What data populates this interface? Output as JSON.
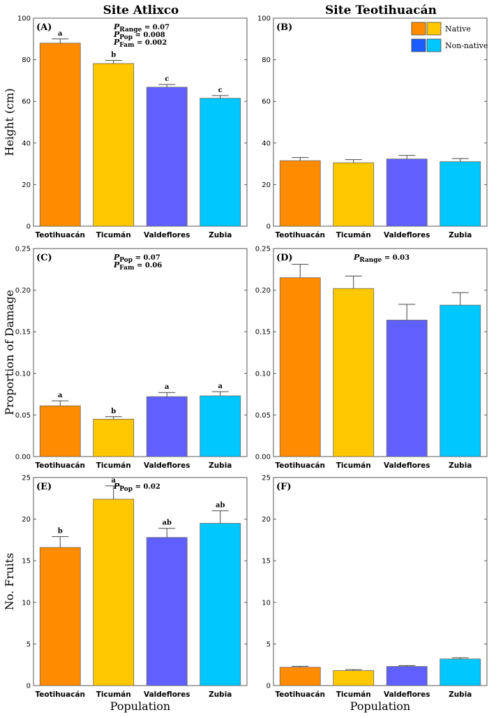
{
  "figure": {
    "col_titles": [
      "Site Atlixco",
      "Site Teotihuacán"
    ],
    "xlabel": "Population",
    "legend": [
      {
        "label": "Native",
        "colors": [
          "#ff8c00",
          "#ffc800"
        ]
      },
      {
        "label": "Non-native",
        "colors": [
          "#1a5cff",
          "#00c8ff"
        ]
      }
    ]
  },
  "colors": {
    "Teotihuacán": "#ff8c00",
    "Ticumán": "#ffc800",
    "Valdeflores": "#6060ff",
    "Zubia": "#00c8ff"
  },
  "chart_data": [
    {
      "panel": "(A)",
      "site": "Site Atlixco",
      "type": "bar",
      "categories": [
        "Teotihuacán",
        "Ticumán",
        "Valdeflores",
        "Zubia"
      ],
      "values": [
        88,
        78.2,
        66.8,
        61.5
      ],
      "errors": [
        2,
        1.5,
        1.3,
        1.3
      ],
      "letters": [
        "a",
        "b",
        "c",
        "c"
      ],
      "ylabel": "Height (cm)",
      "ylim": [
        0,
        100
      ],
      "yticks": [
        0,
        20,
        40,
        60,
        80,
        100
      ],
      "ytick_labels": [
        "0",
        "20",
        "40",
        "60",
        "80",
        "100"
      ],
      "pvalues": [
        {
          "sym": "P",
          "sub": "Range",
          "val": " =  0.07"
        },
        {
          "sym": "P",
          "sub": "Pop",
          "val": " = 0.008"
        },
        {
          "sym": "P",
          "sub": "Fam",
          "val": " = 0.002"
        }
      ]
    },
    {
      "panel": "(B)",
      "site": "Site Teotihuacán",
      "type": "bar",
      "categories": [
        "Teotihuacán",
        "Ticumán",
        "Valdeflores",
        "Zubia"
      ],
      "values": [
        31.5,
        30.5,
        32.3,
        31
      ],
      "errors": [
        1.5,
        1.5,
        1.7,
        1.5
      ],
      "letters": [],
      "ylabel": "",
      "ylim": [
        0,
        100
      ],
      "yticks": [
        0,
        20,
        40,
        60,
        80,
        100
      ],
      "ytick_labels": [
        "0",
        "20",
        "40",
        "60",
        "80",
        "100"
      ],
      "pvalues": []
    },
    {
      "panel": "(C)",
      "site": "Site Atlixco",
      "type": "bar",
      "categories": [
        "Teotihuacán",
        "Ticumán",
        "Valdeflores",
        "Zubia"
      ],
      "values": [
        0.061,
        0.045,
        0.072,
        0.073
      ],
      "errors": [
        0.006,
        0.003,
        0.005,
        0.005
      ],
      "letters": [
        "a",
        "b",
        "a",
        "a"
      ],
      "ylabel": "Proportion of Damage",
      "ylim": [
        0,
        0.25
      ],
      "yticks": [
        0,
        0.05,
        0.1,
        0.15,
        0.2,
        0.25
      ],
      "ytick_labels": [
        "0.00",
        "0.05",
        "0.10",
        "0.15",
        "0.20",
        "0.25"
      ],
      "pvalues": [
        {
          "sym": "P",
          "sub": "Pop",
          "val": " = 0.07"
        },
        {
          "sym": "P",
          "sub": "Fam",
          "val": " = 0.06"
        }
      ]
    },
    {
      "panel": "(D)",
      "site": "Site Teotihuacán",
      "type": "bar",
      "categories": [
        "Teotihuacán",
        "Ticumán",
        "Valdeflores",
        "Zubia"
      ],
      "values": [
        0.215,
        0.202,
        0.164,
        0.182
      ],
      "errors": [
        0.016,
        0.015,
        0.019,
        0.015
      ],
      "letters": [],
      "ylabel": "",
      "ylim": [
        0,
        0.25
      ],
      "yticks": [
        0,
        0.05,
        0.1,
        0.15,
        0.2,
        0.25
      ],
      "ytick_labels": [
        "0.00",
        "0.05",
        "0.10",
        "0.15",
        "0.20",
        "0.25"
      ],
      "pvalues": [
        {
          "sym": "P",
          "sub": "Range",
          "val": " = 0.03"
        }
      ]
    },
    {
      "panel": "(E)",
      "site": "Site Atlixco",
      "type": "bar",
      "categories": [
        "Teotihuacán",
        "Ticumán",
        "Valdeflores",
        "Zubia"
      ],
      "values": [
        16.6,
        22.4,
        17.8,
        19.5
      ],
      "errors": [
        1.3,
        1.6,
        1.1,
        1.5
      ],
      "letters": [
        "b",
        "a",
        "ab",
        "ab"
      ],
      "ylabel": "No. Fruits",
      "ylim": [
        0,
        25
      ],
      "yticks": [
        0,
        5,
        10,
        15,
        20,
        25
      ],
      "ytick_labels": [
        "0",
        "5",
        "10",
        "15",
        "20",
        "25"
      ],
      "pvalues": [
        {
          "sym": "P",
          "sub": "Pop",
          "val": " = 0.02"
        }
      ]
    },
    {
      "panel": "(F)",
      "site": "Site Teotihuacán",
      "type": "bar",
      "categories": [
        "Teotihuacán",
        "Ticumán",
        "Valdeflores",
        "Zubia"
      ],
      "values": [
        2.2,
        1.8,
        2.3,
        3.2
      ],
      "errors": [
        0.12,
        0.12,
        0.1,
        0.15
      ],
      "letters": [],
      "ylabel": "",
      "ylim": [
        0,
        25
      ],
      "yticks": [
        0,
        5,
        10,
        15,
        20,
        25
      ],
      "ytick_labels": [
        "0",
        "5",
        "10",
        "15",
        "20",
        "25"
      ],
      "pvalues": []
    }
  ]
}
